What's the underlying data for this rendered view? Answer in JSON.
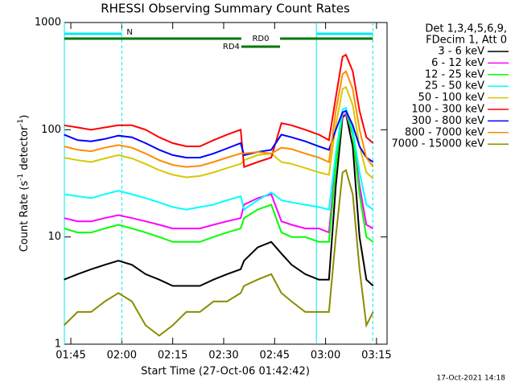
{
  "chart_data": {
    "type": "line",
    "title": "RHESSI Observing Summary Count Rates",
    "xlabel": "Start Time (27-Oct-06 01:42:42)",
    "ylabel": [
      "Count Rate (s",
      "-1",
      " detector",
      "-1",
      ")"
    ],
    "legend_header": [
      "Det 1,3,4,5,6,9,",
      "FDecim 1, Att 0"
    ],
    "footer": "17-Oct-2021 14:18",
    "log_y": true,
    "xlim": [
      103.1,
      198.1
    ],
    "xticks": [
      {
        "value": 105,
        "label": "01:45"
      },
      {
        "value": 120,
        "label": "02:00"
      },
      {
        "value": 135,
        "label": "02:15"
      },
      {
        "value": 150,
        "label": "02:30"
      },
      {
        "value": 165,
        "label": "02:45"
      },
      {
        "value": 180,
        "label": "03:00"
      },
      {
        "value": 195,
        "label": "03:15"
      }
    ],
    "ylim": [
      1,
      1000
    ],
    "yticks": [
      1,
      10,
      100,
      1000
    ],
    "flags": [
      {
        "label": "N",
        "color": "#00e8f0",
        "intervals": [
          [
            103.1,
            120
          ],
          [
            177.3,
            193.9
          ]
        ]
      },
      {
        "label": "RD0",
        "color": "#007800",
        "intervals": [
          [
            103.1,
            155.2
          ],
          [
            166.6,
            193.9
          ]
        ]
      },
      {
        "label": "RD4",
        "color": "#007800",
        "intervals": [
          [
            155.2,
            166.6
          ]
        ]
      }
    ],
    "x": [
      103,
      107,
      111,
      115,
      119,
      123,
      127,
      131,
      135,
      139,
      143,
      147,
      151,
      155,
      156,
      160,
      164,
      167,
      170,
      174,
      178,
      181,
      183,
      185,
      186,
      188,
      190,
      192,
      194
    ],
    "series": [
      {
        "name": "3 - 6 keV",
        "color": "#000000",
        "values": [
          4,
          4.5,
          5,
          5.5,
          6,
          5.5,
          4.5,
          4,
          3.5,
          3.5,
          3.5,
          4,
          4.5,
          5,
          6,
          8,
          9,
          7,
          5.5,
          4.5,
          4,
          4,
          30,
          130,
          140,
          70,
          10,
          4,
          3.5
        ]
      },
      {
        "name": "6 - 12 keV",
        "color": "#ff00ff",
        "values": [
          15,
          14,
          14,
          15,
          16,
          15,
          14,
          13,
          12,
          12,
          12,
          13,
          14,
          15,
          20,
          23,
          25,
          14,
          13,
          12,
          12,
          11,
          50,
          135,
          140,
          90,
          30,
          13,
          12
        ]
      },
      {
        "name": "12 - 25 keV",
        "color": "#00ff00",
        "values": [
          12,
          11,
          11,
          12,
          13,
          12,
          11,
          10,
          9,
          9,
          9,
          10,
          11,
          12,
          15,
          18,
          20,
          11,
          10,
          10,
          9,
          9,
          45,
          145,
          150,
          90,
          25,
          10,
          9
        ]
      },
      {
        "name": "25 - 50 keV",
        "color": "#00ffff",
        "values": [
          25,
          24,
          23,
          25,
          27,
          25,
          23,
          21,
          19,
          18,
          19,
          20,
          22,
          24,
          18,
          22,
          26,
          22,
          21,
          20,
          19,
          18,
          60,
          155,
          160,
          100,
          40,
          20,
          18
        ]
      },
      {
        "name": "50 - 100 keV",
        "color": "#d8c800",
        "values": [
          55,
          52,
          50,
          54,
          58,
          54,
          48,
          42,
          38,
          36,
          37,
          40,
          44,
          48,
          52,
          58,
          60,
          50,
          48,
          44,
          40,
          38,
          110,
          240,
          250,
          170,
          70,
          40,
          35
        ]
      },
      {
        "name": "100 - 300 keV",
        "color": "#ff0000",
        "values": [
          110,
          105,
          100,
          105,
          110,
          110,
          100,
          85,
          75,
          70,
          70,
          80,
          90,
          100,
          45,
          50,
          55,
          115,
          110,
          100,
          90,
          80,
          200,
          480,
          500,
          350,
          150,
          85,
          75
        ]
      },
      {
        "name": "300 - 800 keV",
        "color": "#0000ff",
        "values": [
          90,
          80,
          78,
          82,
          88,
          85,
          75,
          65,
          58,
          55,
          55,
          60,
          67,
          75,
          58,
          62,
          65,
          90,
          85,
          78,
          70,
          65,
          100,
          145,
          150,
          110,
          70,
          55,
          50
        ]
      },
      {
        "name": "800 - 7000 keV",
        "color": "#ff8c00",
        "values": [
          70,
          65,
          63,
          68,
          72,
          68,
          60,
          52,
          47,
          45,
          46,
          50,
          55,
          60,
          60,
          62,
          60,
          68,
          66,
          60,
          55,
          50,
          150,
          330,
          350,
          240,
          100,
          55,
          45
        ]
      },
      {
        "name": "7000 - 15000 keV",
        "color": "#8c8c00",
        "values": [
          1.5,
          2,
          2,
          2.5,
          3,
          2.5,
          1.5,
          1.2,
          1.5,
          2,
          2,
          2.5,
          2.5,
          3,
          3.5,
          4,
          4.5,
          3,
          2.5,
          2,
          2,
          2,
          10,
          40,
          42,
          25,
          5,
          1.5,
          2
        ]
      }
    ]
  }
}
